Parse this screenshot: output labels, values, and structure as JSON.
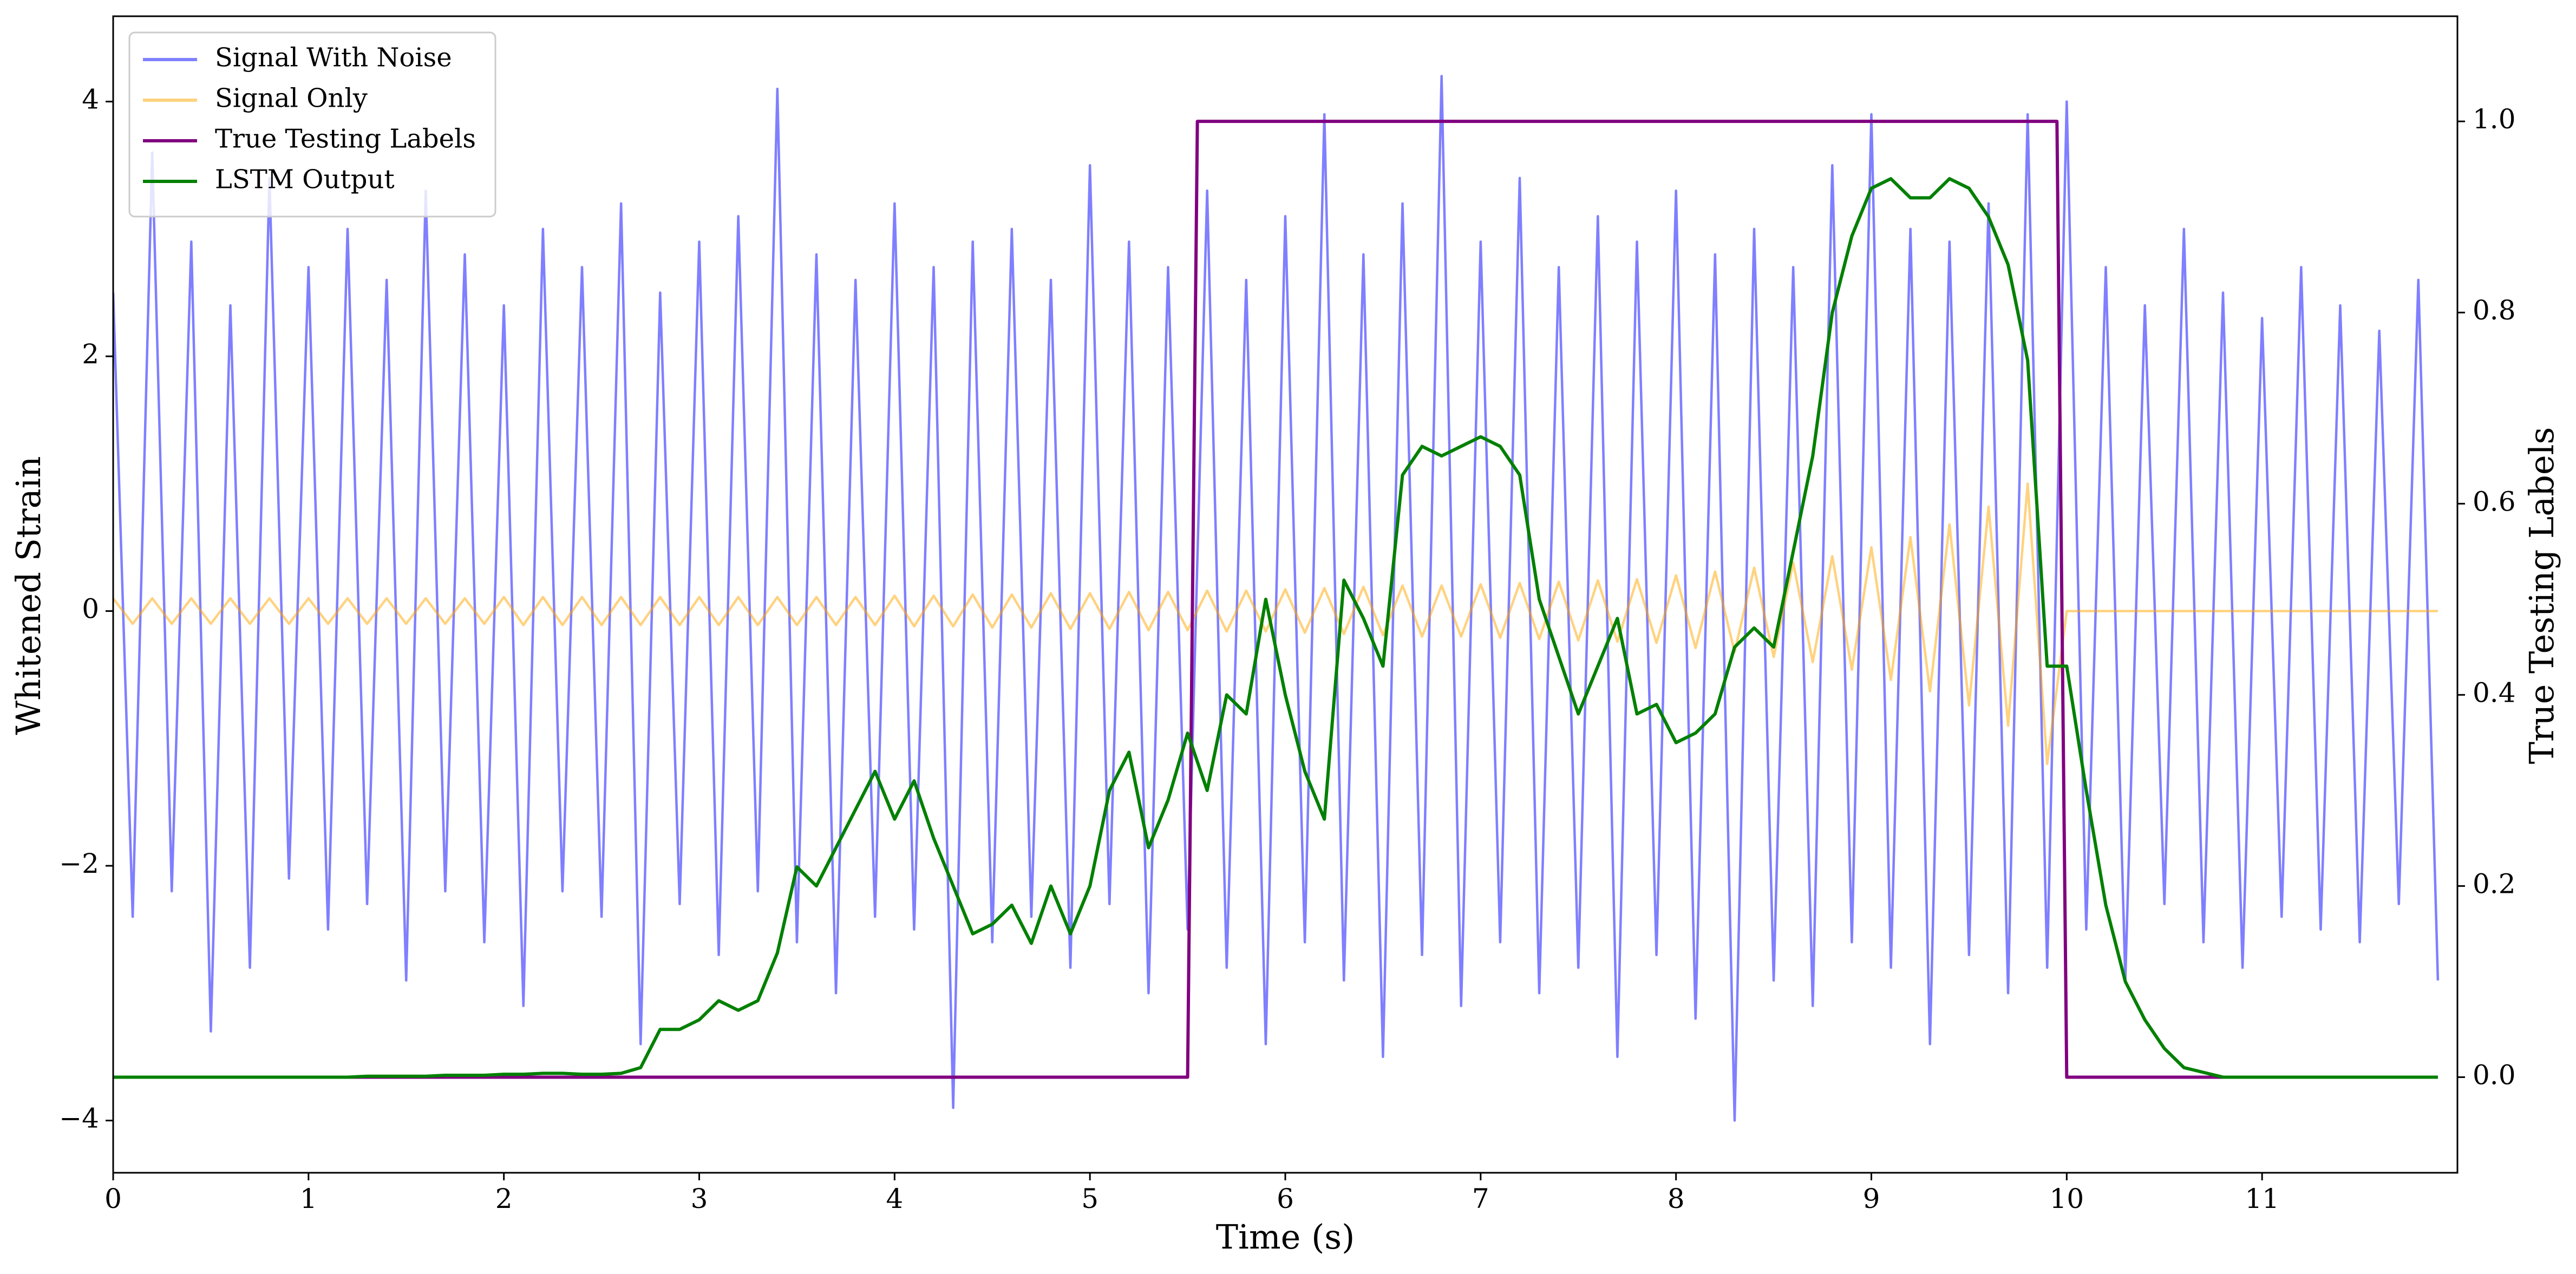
{
  "chart_data": {
    "type": "line",
    "x_label": "Time (s)",
    "y_label": "Whitened Strain",
    "y2_label": "True Testing Labels",
    "xlim": [
      0,
      12
    ],
    "xticks": [
      0,
      1,
      2,
      3,
      4,
      5,
      6,
      7,
      8,
      9,
      10,
      11
    ],
    "ylim": [
      -4.41,
      4.67
    ],
    "yticks": [
      {
        "value": -4,
        "label": "−4"
      },
      {
        "value": -2,
        "label": "−2"
      },
      0,
      2,
      4
    ],
    "y2lim": [
      -0.1,
      1.11
    ],
    "y2ticks": [
      {
        "value": 0,
        "label": "0.0"
      },
      0.2,
      0.4,
      0.6,
      0.8,
      {
        "value": 1,
        "label": "1.0"
      }
    ],
    "grid": false,
    "legend": "upper left",
    "x": [
      0,
      0.1,
      0.2,
      0.3,
      0.4,
      0.5,
      0.6,
      0.7,
      0.8,
      0.9,
      1,
      1.1,
      1.2,
      1.3,
      1.4,
      1.5,
      1.6,
      1.7,
      1.8,
      1.9,
      2,
      2.1,
      2.2,
      2.3,
      2.4,
      2.5,
      2.6,
      2.7,
      2.8,
      2.9,
      3,
      3.1,
      3.2,
      3.3,
      3.4,
      3.5,
      3.6,
      3.7,
      3.8,
      3.9,
      4,
      4.1,
      4.2,
      4.3,
      4.4,
      4.5,
      4.6,
      4.7,
      4.8,
      4.9,
      5,
      5.1,
      5.2,
      5.3,
      5.4,
      5.5,
      5.6,
      5.7,
      5.8,
      5.9,
      6,
      6.1,
      6.2,
      6.3,
      6.4,
      6.5,
      6.6,
      6.7,
      6.8,
      6.9,
      7,
      7.1,
      7.2,
      7.3,
      7.4,
      7.5,
      7.6,
      7.7,
      7.8,
      7.9,
      8,
      8.1,
      8.2,
      8.3,
      8.4,
      8.5,
      8.6,
      8.7,
      8.8,
      8.9,
      9,
      9.1,
      9.2,
      9.3,
      9.4,
      9.5,
      9.6,
      9.7,
      9.8,
      9.9,
      10,
      10.1,
      10.2,
      10.3,
      10.4,
      10.5,
      10.6,
      10.7,
      10.8,
      10.9,
      11,
      11.1,
      11.2,
      11.3,
      11.4,
      11.5,
      11.6,
      11.7,
      11.8,
      11.9
    ],
    "series": [
      {
        "name": "Signal With Noise",
        "color": "rgba(0,0,255,0.5)",
        "axis": "y",
        "values": [
          2.5,
          -2.4,
          3.6,
          -2.2,
          2.9,
          -3.3,
          2.4,
          -2.8,
          3.4,
          -2.1,
          2.7,
          -2.5,
          3.0,
          -2.3,
          2.6,
          -2.9,
          3.3,
          -2.2,
          2.8,
          -2.6,
          2.4,
          -3.1,
          3.0,
          -2.2,
          2.7,
          -2.4,
          3.2,
          -3.4,
          2.5,
          -2.3,
          2.9,
          -2.7,
          3.1,
          -2.2,
          4.1,
          -2.6,
          2.8,
          -3.0,
          2.6,
          -2.4,
          3.2,
          -2.5,
          2.7,
          -3.9,
          2.9,
          -2.6,
          3.0,
          -2.4,
          2.6,
          -2.8,
          3.5,
          -2.3,
          2.9,
          -3.0,
          2.7,
          -2.5,
          3.3,
          -2.8,
          2.6,
          -3.4,
          3.1,
          -2.6,
          3.9,
          -2.9,
          2.8,
          -3.5,
          3.2,
          -2.7,
          4.2,
          -3.1,
          2.9,
          -2.6,
          3.4,
          -3.0,
          2.7,
          -2.8,
          3.1,
          -3.5,
          2.9,
          -2.7,
          3.3,
          -3.2,
          2.8,
          -4.0,
          3.0,
          -2.9,
          2.7,
          -3.1,
          3.5,
          -2.6,
          3.9,
          -2.8,
          3.0,
          -3.4,
          2.9,
          -2.7,
          3.2,
          -3.0,
          3.9,
          -2.8,
          4.0,
          -2.5,
          2.7,
          -2.9,
          2.4,
          -2.3,
          3.0,
          -2.6,
          2.5,
          -2.8,
          2.3,
          -2.4,
          2.7,
          -2.5,
          2.4,
          -2.6,
          2.2,
          -2.3,
          2.6,
          -2.9
        ]
      },
      {
        "name": "Signal Only",
        "color": "rgba(255,165,0,0.5)",
        "axis": "y",
        "values": [
          0.1,
          -0.1,
          0.1,
          -0.1,
          0.1,
          -0.1,
          0.1,
          -0.1,
          0.1,
          -0.1,
          0.1,
          -0.1,
          0.1,
          -0.1,
          0.1,
          -0.1,
          0.1,
          -0.1,
          0.1,
          -0.1,
          0.11,
          -0.11,
          0.11,
          -0.11,
          0.11,
          -0.11,
          0.11,
          -0.11,
          0.11,
          -0.11,
          0.11,
          -0.11,
          0.11,
          -0.11,
          0.11,
          -0.11,
          0.11,
          -0.11,
          0.11,
          -0.11,
          0.12,
          -0.12,
          0.12,
          -0.12,
          0.13,
          -0.13,
          0.13,
          -0.13,
          0.14,
          -0.14,
          0.14,
          -0.14,
          0.15,
          -0.15,
          0.15,
          -0.15,
          0.16,
          -0.16,
          0.16,
          -0.16,
          0.17,
          -0.17,
          0.18,
          -0.18,
          0.19,
          -0.19,
          0.2,
          -0.2,
          0.2,
          -0.2,
          0.21,
          -0.21,
          0.22,
          -0.22,
          0.23,
          -0.23,
          0.24,
          -0.24,
          0.25,
          -0.25,
          0.28,
          -0.29,
          0.31,
          -0.32,
          0.34,
          -0.36,
          0.38,
          -0.4,
          0.43,
          -0.46,
          0.5,
          -0.54,
          0.58,
          -0.63,
          0.68,
          -0.74,
          0.82,
          -0.9,
          1.0,
          -1.2,
          0,
          0,
          0,
          0,
          0,
          0,
          0,
          0,
          0,
          0,
          0,
          0,
          0,
          0,
          0,
          0,
          0,
          0,
          0,
          0
        ]
      },
      {
        "name": "True Testing Labels",
        "color": "#800080",
        "axis": "y2",
        "x": [
          0,
          5.5,
          5.55,
          9.95,
          10.0,
          11.9
        ],
        "values": [
          0,
          0,
          1,
          1,
          0,
          0
        ]
      },
      {
        "name": "LSTM Output",
        "color": "#008000",
        "axis": "y2",
        "values": [
          0,
          0,
          0,
          0,
          0,
          0,
          0,
          0,
          0,
          0,
          0,
          0,
          0,
          0.001,
          0.001,
          0.001,
          0.001,
          0.002,
          0.002,
          0.002,
          0.003,
          0.003,
          0.004,
          0.004,
          0.003,
          0.003,
          0.004,
          0.01,
          0.05,
          0.05,
          0.06,
          0.08,
          0.07,
          0.08,
          0.13,
          0.22,
          0.2,
          0.24,
          0.28,
          0.32,
          0.27,
          0.31,
          0.25,
          0.2,
          0.15,
          0.16,
          0.18,
          0.14,
          0.2,
          0.15,
          0.2,
          0.3,
          0.34,
          0.24,
          0.29,
          0.36,
          0.3,
          0.4,
          0.38,
          0.5,
          0.4,
          0.32,
          0.27,
          0.52,
          0.48,
          0.43,
          0.63,
          0.66,
          0.65,
          0.66,
          0.67,
          0.66,
          0.63,
          0.5,
          0.44,
          0.38,
          0.43,
          0.48,
          0.38,
          0.39,
          0.35,
          0.36,
          0.38,
          0.45,
          0.47,
          0.45,
          0.55,
          0.65,
          0.8,
          0.88,
          0.93,
          0.94,
          0.92,
          0.92,
          0.94,
          0.93,
          0.9,
          0.85,
          0.75,
          0.43,
          0.43,
          0.3,
          0.18,
          0.1,
          0.06,
          0.03,
          0.01,
          0.005,
          0,
          0,
          0,
          0,
          0,
          0,
          0,
          0,
          0,
          0,
          0,
          0
        ]
      }
    ]
  }
}
